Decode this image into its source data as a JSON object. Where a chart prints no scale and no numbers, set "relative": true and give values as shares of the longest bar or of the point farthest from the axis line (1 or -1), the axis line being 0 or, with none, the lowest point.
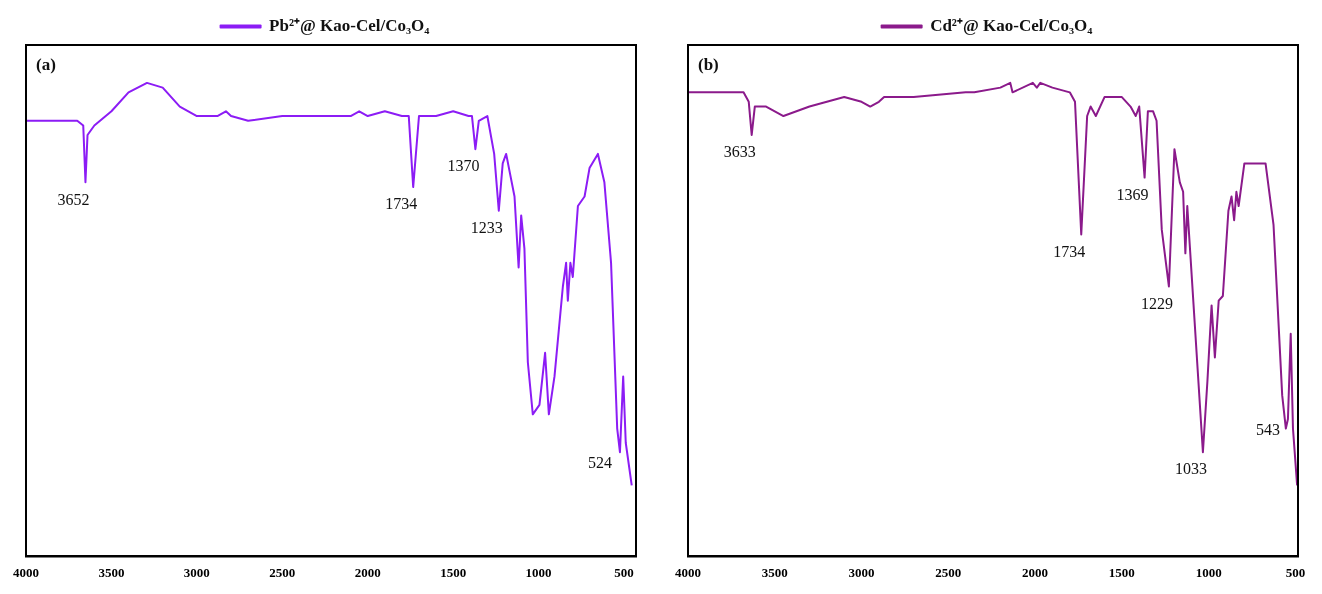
{
  "chart_data": [
    {
      "type": "line",
      "legend": "top",
      "marker": "none",
      "relative": true,
      "xlim": [
        4000,
        430
      ],
      "xticks": [
        4000,
        3500,
        3000,
        2500,
        2000,
        1500,
        1000,
        500
      ],
      "annotations": [
        "(a)",
        {
          "text": "3652",
          "x": 3652,
          "y": 0.79
        },
        {
          "text": "1734",
          "x": 1734,
          "y": 0.78
        },
        {
          "text": "1370",
          "x": 1370,
          "y": 0.86
        },
        {
          "text": "1233",
          "x": 1233,
          "y": 0.73
        },
        {
          "text": "524",
          "x": 524,
          "y": 0.22
        }
      ],
      "series": [
        {
          "name": "Pb²⁺@ Kao-Cel/Co₃O₄",
          "color": "#8c1cf5",
          "x": [
            4000,
            3700,
            3665,
            3652,
            3640,
            3600,
            3500,
            3400,
            3292,
            3200,
            3100,
            3000,
            2950,
            2880,
            2830,
            2800,
            2700,
            2500,
            2300,
            2100,
            2050,
            2000,
            1900,
            1800,
            1760,
            1734,
            1700,
            1600,
            1500,
            1410,
            1390,
            1370,
            1350,
            1300,
            1260,
            1233,
            1210,
            1190,
            1141,
            1117,
            1102,
            1083,
            1063,
            1034,
            995,
            962,
            940,
            907,
            858,
            839,
            829,
            814,
            800,
            770,
            731,
            702,
            653,
            615,
            576,
            540,
            524,
            505,
            490,
            455
          ],
          "values": [
            0.92,
            0.92,
            0.91,
            0.79,
            0.89,
            0.91,
            0.94,
            0.98,
            1,
            0.99,
            0.95,
            0.93,
            0.93,
            0.93,
            0.94,
            0.93,
            0.92,
            0.93,
            0.93,
            0.93,
            0.94,
            0.93,
            0.94,
            0.93,
            0.93,
            0.78,
            0.93,
            0.93,
            0.94,
            0.93,
            0.93,
            0.86,
            0.92,
            0.93,
            0.85,
            0.73,
            0.83,
            0.85,
            0.76,
            0.61,
            0.72,
            0.65,
            0.41,
            0.3,
            0.32,
            0.43,
            0.3,
            0.38,
            0.57,
            0.62,
            0.54,
            0.62,
            0.59,
            0.74,
            0.76,
            0.82,
            0.85,
            0.79,
            0.62,
            0.27,
            0.22,
            0.38,
            0.24,
            0.15
          ]
        }
      ]
    },
    {
      "type": "line",
      "legend": "top",
      "marker": "none",
      "relative": true,
      "xlim": [
        4000,
        485
      ],
      "xticks": [
        4000,
        3500,
        3000,
        2500,
        2000,
        1500,
        1000,
        500
      ],
      "annotations": [
        "(b)",
        {
          "text": "3633",
          "x": 3633,
          "y": 0.89
        },
        {
          "text": "1734",
          "x": 1734,
          "y": 0.68
        },
        {
          "text": "1369",
          "x": 1369,
          "y": 0.8
        },
        {
          "text": "1229",
          "x": 1229,
          "y": 0.57
        },
        {
          "text": "1033",
          "x": 1033,
          "y": 0.22
        },
        {
          "text": "543",
          "x": 543,
          "y": 0.29
        }
      ],
      "series": [
        {
          "name": "Cd²⁺@ Kao-Cel/Co₃O₄",
          "color": "#8b1a8b",
          "x": [
            4000,
            3680,
            3650,
            3633,
            3615,
            3550,
            3450,
            3300,
            3100,
            3000,
            2950,
            2900,
            2870,
            2700,
            2400,
            2350,
            2200,
            2143,
            2130,
            2013,
            1990,
            1970,
            1900,
            1800,
            1770,
            1734,
            1700,
            1680,
            1650,
            1600,
            1500,
            1450,
            1420,
            1400,
            1369,
            1350,
            1320,
            1300,
            1270,
            1229,
            1197,
            1166,
            1147,
            1134,
            1123,
            1033,
            1007,
            983,
            964,
            942,
            918,
            886,
            868,
            853,
            840,
            827,
            794,
            728,
            672,
            626,
            576,
            555,
            543,
            527,
            514,
            490
          ],
          "values": [
            0.98,
            0.98,
            0.96,
            0.89,
            0.95,
            0.95,
            0.93,
            0.95,
            0.97,
            0.96,
            0.95,
            0.96,
            0.97,
            0.97,
            0.98,
            0.98,
            0.99,
            1,
            0.98,
            1,
            0.99,
            1,
            0.99,
            0.98,
            0.96,
            0.68,
            0.93,
            0.95,
            0.93,
            0.97,
            0.97,
            0.95,
            0.93,
            0.95,
            0.8,
            0.94,
            0.94,
            0.92,
            0.69,
            0.57,
            0.86,
            0.79,
            0.77,
            0.64,
            0.74,
            0.22,
            0.37,
            0.53,
            0.42,
            0.54,
            0.55,
            0.73,
            0.76,
            0.71,
            0.77,
            0.74,
            0.83,
            0.83,
            0.83,
            0.7,
            0.34,
            0.27,
            0.29,
            0.47,
            0.27,
            0.15
          ]
        }
      ]
    }
  ]
}
